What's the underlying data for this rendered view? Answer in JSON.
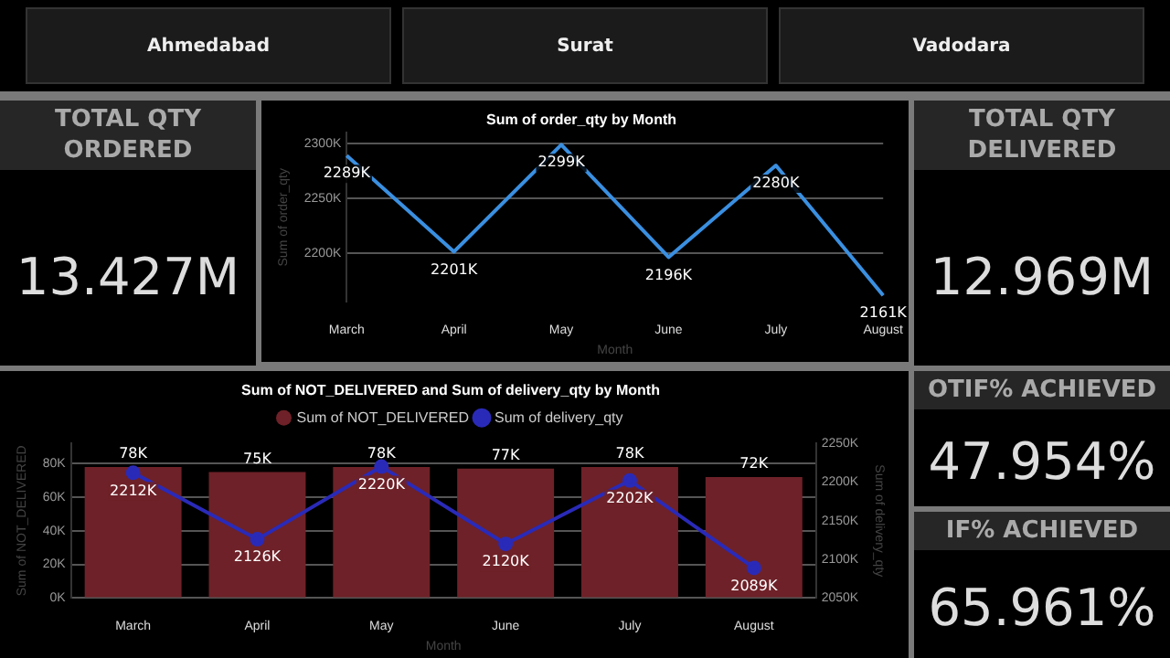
{
  "chart_data": [
    {
      "type": "other",
      "annotations": [
        "Ahmedabad",
        "Surat",
        "Vadodara"
      ]
    },
    {
      "type": "other",
      "title": "TOTAL QTY ORDERED",
      "annotations": [
        "13.427M"
      ]
    },
    {
      "type": "line",
      "title": "Sum of order_qty by Month",
      "xlabel": "Month",
      "ylabel": "Sum of order_qty",
      "categories": [
        "March",
        "April",
        "May",
        "June",
        "July",
        "August"
      ],
      "series": [
        {
          "color": "#3a8fe0",
          "values": [
            2289,
            2201,
            2299,
            2196,
            2280,
            2161
          ],
          "value_labels": [
            "2289K",
            "2201K",
            "2299K",
            "2196K",
            "2280K",
            "2161K"
          ]
        }
      ],
      "ylim": [
        2155,
        2310
      ],
      "yticks": [
        {
          "value": 2200,
          "label": "2200K"
        },
        {
          "value": 2250,
          "label": "2250K"
        },
        {
          "value": 2300,
          "label": "2300K"
        }
      ],
      "grid": "y",
      "marker": "none",
      "legend": false
    },
    {
      "type": "other",
      "title": "TOTAL QTY DELIVERED",
      "annotations": [
        "12.969M"
      ]
    },
    {
      "type": "bar",
      "title": "Sum of NOT_DELIVERED and Sum of delivery_qty by Month",
      "xlabel": "Month",
      "ylabel": "Sum of NOT_DELIVERED",
      "y2label": "Sum of delivery_qty",
      "categories": [
        "March",
        "April",
        "May",
        "June",
        "July",
        "August"
      ],
      "series": [
        {
          "name": "Sum of NOT_DELIVERED",
          "type": "bar",
          "color": "#6e2128",
          "values": [
            78,
            75,
            78,
            77,
            78,
            72
          ],
          "value_labels": [
            "78K",
            "75K",
            "78K",
            "77K",
            "78K",
            "72K"
          ]
        },
        {
          "name": "Sum of delivery_qty",
          "type": "line",
          "axis": "y2",
          "color": "#2a2ab8",
          "values": [
            2212,
            2126,
            2220,
            2120,
            2202,
            2089
          ],
          "value_labels": [
            "2212K",
            "2126K",
            "2220K",
            "2120K",
            "2202K",
            "2089K"
          ]
        }
      ],
      "ylim": [
        0,
        92
      ],
      "yticks": [
        {
          "value": 0,
          "label": "0K"
        },
        {
          "value": 20,
          "label": "20K"
        },
        {
          "value": 40,
          "label": "40K"
        },
        {
          "value": 60,
          "label": "60K"
        },
        {
          "value": 80,
          "label": "80K"
        }
      ],
      "y2lim": [
        2050,
        2250
      ],
      "y2ticks": [
        {
          "value": 2050,
          "label": "2050K"
        },
        {
          "value": 2100,
          "label": "2100K"
        },
        {
          "value": 2150,
          "label": "2150K"
        },
        {
          "value": 2200,
          "label": "2200K"
        },
        {
          "value": 2250,
          "label": "2250K"
        }
      ],
      "grid": "y",
      "marker": "circle",
      "legend": "top"
    },
    {
      "type": "other",
      "title": "OTIF% ACHIEVED",
      "annotations": [
        "47.954%"
      ]
    },
    {
      "type": "other",
      "title": "IF% ACHIEVED",
      "annotations": [
        "65.961%"
      ]
    }
  ]
}
